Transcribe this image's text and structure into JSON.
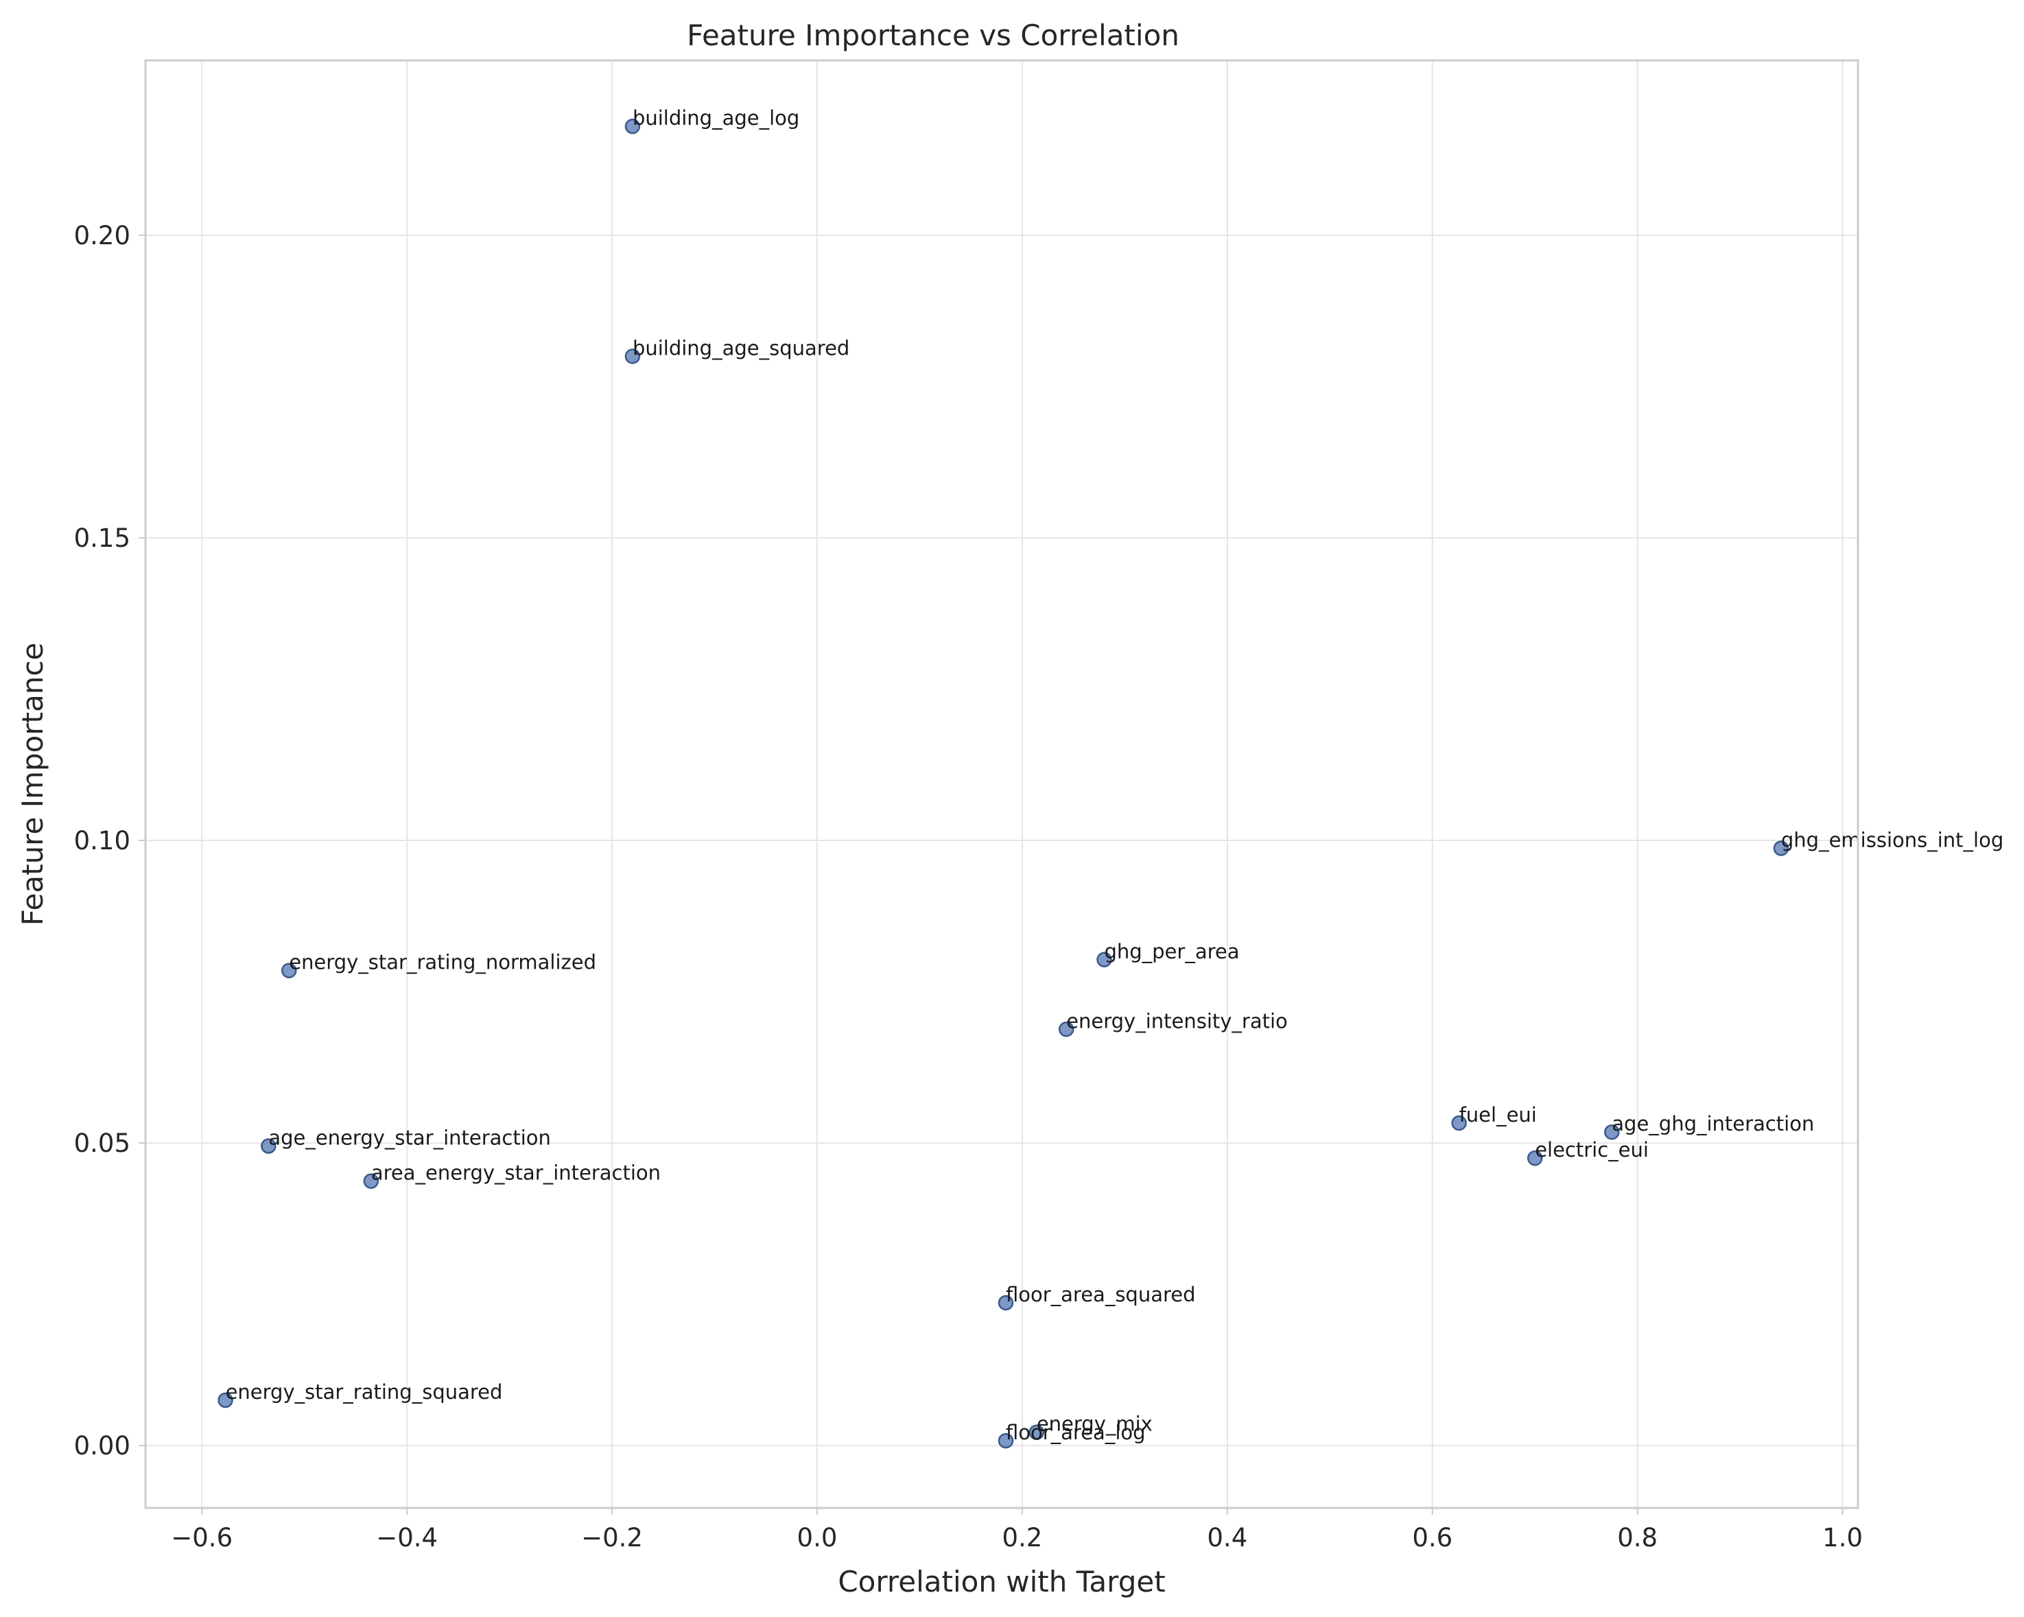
{
  "chart_data": {
    "type": "scatter",
    "title": "Feature Importance vs Correlation",
    "xlabel": "Correlation with Target",
    "ylabel": "Feature Importance",
    "xlim": [
      -0.655,
      1.015
    ],
    "ylim": [
      -0.0103,
      0.2289
    ],
    "xticks": [
      -0.6,
      -0.4,
      -0.2,
      0.0,
      0.2,
      0.4,
      0.6,
      0.8,
      1.0
    ],
    "xtick_labels": [
      "−0.6",
      "−0.4",
      "−0.2",
      "0.0",
      "0.2",
      "0.4",
      "0.6",
      "0.8",
      "1.0"
    ],
    "yticks": [
      0.0,
      0.05,
      0.1,
      0.15,
      0.2
    ],
    "ytick_labels": [
      "0.00",
      "0.05",
      "0.10",
      "0.15",
      "0.20"
    ],
    "grid": true,
    "point_color": "#4c72b0",
    "points": [
      {
        "label": "building_age_log",
        "x": -0.18,
        "y": 0.218
      },
      {
        "label": "building_age_squared",
        "x": -0.18,
        "y": 0.18
      },
      {
        "label": "ghg_emissions_int_log",
        "x": 0.94,
        "y": 0.0987
      },
      {
        "label": "ghg_per_area",
        "x": 0.28,
        "y": 0.0803
      },
      {
        "label": "energy_star_rating_normalized",
        "x": -0.515,
        "y": 0.0785
      },
      {
        "label": "energy_intensity_ratio",
        "x": 0.243,
        "y": 0.0688
      },
      {
        "label": "fuel_eui",
        "x": 0.626,
        "y": 0.0533
      },
      {
        "label": "age_ghg_interaction",
        "x": 0.775,
        "y": 0.0518
      },
      {
        "label": "age_energy_star_interaction",
        "x": -0.535,
        "y": 0.0495
      },
      {
        "label": "electric_eui",
        "x": 0.7,
        "y": 0.0475
      },
      {
        "label": "area_energy_star_interaction",
        "x": -0.435,
        "y": 0.0437
      },
      {
        "label": "floor_area_squared",
        "x": 0.184,
        "y": 0.0236
      },
      {
        "label": "energy_star_rating_squared",
        "x": -0.577,
        "y": 0.0075
      },
      {
        "label": "energy_mix",
        "x": 0.214,
        "y": 0.0022
      },
      {
        "label": "floor_area_log",
        "x": 0.184,
        "y": 0.0008
      }
    ]
  }
}
